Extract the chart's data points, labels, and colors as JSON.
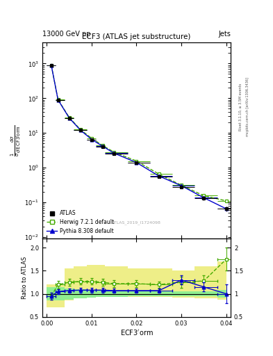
{
  "title": "ECF3 (ATLAS jet substructure)",
  "header_left": "13000 GeV pp",
  "header_right": "Jets",
  "xlabel": "ECF3$^{\\prime}$orm",
  "ylabel_main_top": "$\\frac{1}{\\sigma}\\frac{d\\sigma}{d\\,ECF3^{\\prime}orm}$",
  "ylabel_ratio": "Ratio to ATLAS",
  "watermark": "ATLAS_2019_I1724098",
  "right_label": "Rivet 3.1.10, ≥ 3.5M events",
  "right_label2": "mcplots.cern.ch [arXiv:1306.3436]",
  "x_centers": [
    0.001,
    0.0025,
    0.005,
    0.0075,
    0.01,
    0.0125,
    0.015,
    0.02,
    0.025,
    0.03,
    0.035,
    0.04
  ],
  "x_edges": [
    0.0,
    0.002,
    0.004,
    0.006,
    0.009,
    0.011,
    0.013,
    0.018,
    0.023,
    0.028,
    0.033,
    0.038,
    0.042
  ],
  "atlas_y": [
    900,
    90,
    27,
    12,
    6.5,
    4.0,
    2.5,
    1.4,
    0.55,
    0.28,
    0.13,
    0.065
  ],
  "atlas_yerr": [
    60,
    5,
    1.5,
    0.8,
    0.4,
    0.3,
    0.2,
    0.1,
    0.05,
    0.025,
    0.015,
    0.01
  ],
  "herwig_y": [
    900,
    92,
    28,
    12.5,
    7.0,
    4.3,
    2.8,
    1.55,
    0.65,
    0.31,
    0.155,
    0.11
  ],
  "pythia_y": [
    900,
    90,
    27,
    12,
    6.5,
    4.1,
    2.6,
    1.4,
    0.57,
    0.3,
    0.135,
    0.065
  ],
  "herwig_ratio": [
    0.95,
    1.2,
    1.25,
    1.27,
    1.27,
    1.25,
    1.22,
    1.22,
    1.2,
    1.25,
    1.28,
    1.75
  ],
  "herwig_ratio_err": [
    0.08,
    0.08,
    0.07,
    0.07,
    0.07,
    0.07,
    0.07,
    0.07,
    0.07,
    0.12,
    0.12,
    0.25
  ],
  "pythia_ratio": [
    0.95,
    1.05,
    1.07,
    1.08,
    1.08,
    1.08,
    1.07,
    1.07,
    1.07,
    1.3,
    1.15,
    1.0
  ],
  "pythia_ratio_err": [
    0.07,
    0.05,
    0.05,
    0.05,
    0.05,
    0.05,
    0.05,
    0.05,
    0.05,
    0.1,
    0.1,
    0.2
  ],
  "atlas_band_x": [
    0.0,
    0.002,
    0.004,
    0.006,
    0.009,
    0.011,
    0.013,
    0.018,
    0.023,
    0.028,
    0.033,
    0.038,
    0.04
  ],
  "atlas_band_lo": [
    0.85,
    0.85,
    0.88,
    0.9,
    0.92,
    0.93,
    0.94,
    0.95,
    0.95,
    0.95,
    0.95,
    0.92,
    0.65
  ],
  "atlas_band_hi": [
    1.15,
    1.15,
    1.12,
    1.1,
    1.08,
    1.07,
    1.06,
    1.05,
    1.05,
    1.05,
    1.05,
    1.08,
    1.35
  ],
  "herwig_band_x": [
    0.0,
    0.002,
    0.004,
    0.006,
    0.009,
    0.011,
    0.013,
    0.018,
    0.023,
    0.028,
    0.033,
    0.038,
    0.04
  ],
  "herwig_band_lo": [
    0.7,
    0.7,
    0.85,
    0.9,
    0.92,
    0.93,
    0.93,
    0.93,
    0.93,
    0.92,
    0.9,
    0.88,
    0.62
  ],
  "herwig_band_hi": [
    1.2,
    1.2,
    1.55,
    1.6,
    1.62,
    1.62,
    1.6,
    1.55,
    1.55,
    1.5,
    1.6,
    1.7,
    2.0
  ],
  "color_atlas": "#000000",
  "color_herwig": "#44aa00",
  "color_pythia": "#0000cc",
  "color_atlas_band": "#90ee90",
  "color_herwig_band": "#eeee88",
  "xlim": [
    -0.001,
    0.041
  ],
  "ylim_main": [
    0.009,
    4000
  ],
  "ylim_ratio": [
    0.5,
    2.2
  ]
}
